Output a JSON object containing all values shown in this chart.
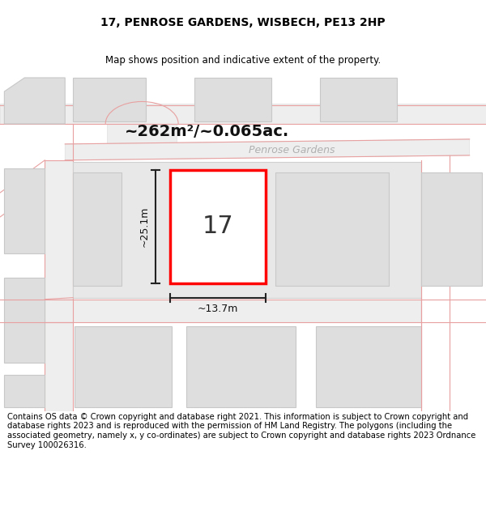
{
  "title": "17, PENROSE GARDENS, WISBECH, PE13 2HP",
  "subtitle": "Map shows position and indicative extent of the property.",
  "footer": "Contains OS data © Crown copyright and database right 2021. This information is subject to Crown copyright and database rights 2023 and is reproduced with the permission of HM Land Registry. The polygons (including the associated geometry, namely x, y co-ordinates) are subject to Crown copyright and database rights 2023 Ordnance Survey 100026316.",
  "area_label": "~262m²/~0.065ac.",
  "street_label": "Penrose Gardens",
  "plot_number": "17",
  "dim_height": "~25.1m",
  "dim_width": "~13.7m",
  "map_bg": "#f2f2f2",
  "plot_fill": "#ffffff",
  "plot_edge": "#ff0000",
  "building_fill": "#dedede",
  "building_edge": "#c8c8c8",
  "road_color": "#e8a0a0",
  "background": "#ffffff",
  "title_fontsize": 10,
  "subtitle_fontsize": 8.5,
  "footer_fontsize": 7.2,
  "area_fontsize": 14,
  "street_fontsize": 9,
  "plot_num_fontsize": 22,
  "dim_fontsize": 9
}
